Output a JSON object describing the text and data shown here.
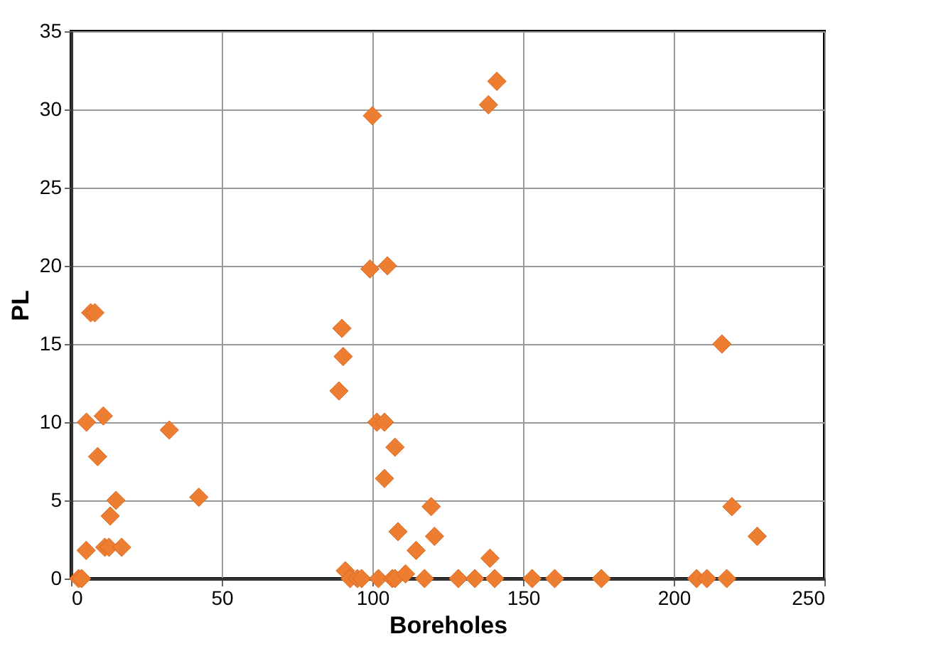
{
  "chart_data": {
    "type": "scatter",
    "xlabel": "Boreholes",
    "ylabel": "PL",
    "x": [
      2.5,
      3.5,
      5,
      11.2,
      12.6,
      16.8,
      13,
      14.9,
      8.8,
      5.1,
      10.7,
      6.5,
      7.9,
      32.6,
      42.4,
      88.9,
      89.9,
      90.3,
      100,
      138.5,
      141.3,
      99.2,
      105,
      101.5,
      104,
      107.5,
      104,
      108.5,
      114.5,
      119.5,
      120.6,
      139,
      91,
      92.6,
      95,
      96.4,
      102,
      106.6,
      107.5,
      111,
      117.3,
      128.5,
      134,
      140.6,
      153,
      160.5,
      176,
      207.6,
      211,
      217.6,
      219.3,
      227.7,
      216
    ],
    "series": [
      {
        "color": "#ed7d31",
        "values": [
          0,
          0,
          1.8,
          2,
          2,
          2,
          4,
          5,
          7.8,
          10,
          10.4,
          17,
          17,
          9.5,
          5.2,
          12,
          16,
          14.2,
          29.6,
          30.3,
          31.8,
          19.8,
          20,
          10,
          10,
          8.4,
          6.4,
          3,
          1.8,
          4.6,
          2.7,
          1.3,
          0.5,
          0,
          0,
          0,
          0,
          0,
          0,
          0.3,
          0,
          0,
          0,
          0,
          0,
          0,
          0,
          0,
          0,
          0,
          4.6,
          2.7,
          15
        ]
      }
    ],
    "xlim": [
      0,
      250
    ],
    "ylim": [
      0,
      35
    ],
    "xticks": [
      0,
      50,
      100,
      150,
      200,
      250
    ],
    "yticks": [
      0,
      5,
      10,
      15,
      20,
      25,
      30,
      35
    ],
    "grid": true,
    "marker": "diamond"
  }
}
